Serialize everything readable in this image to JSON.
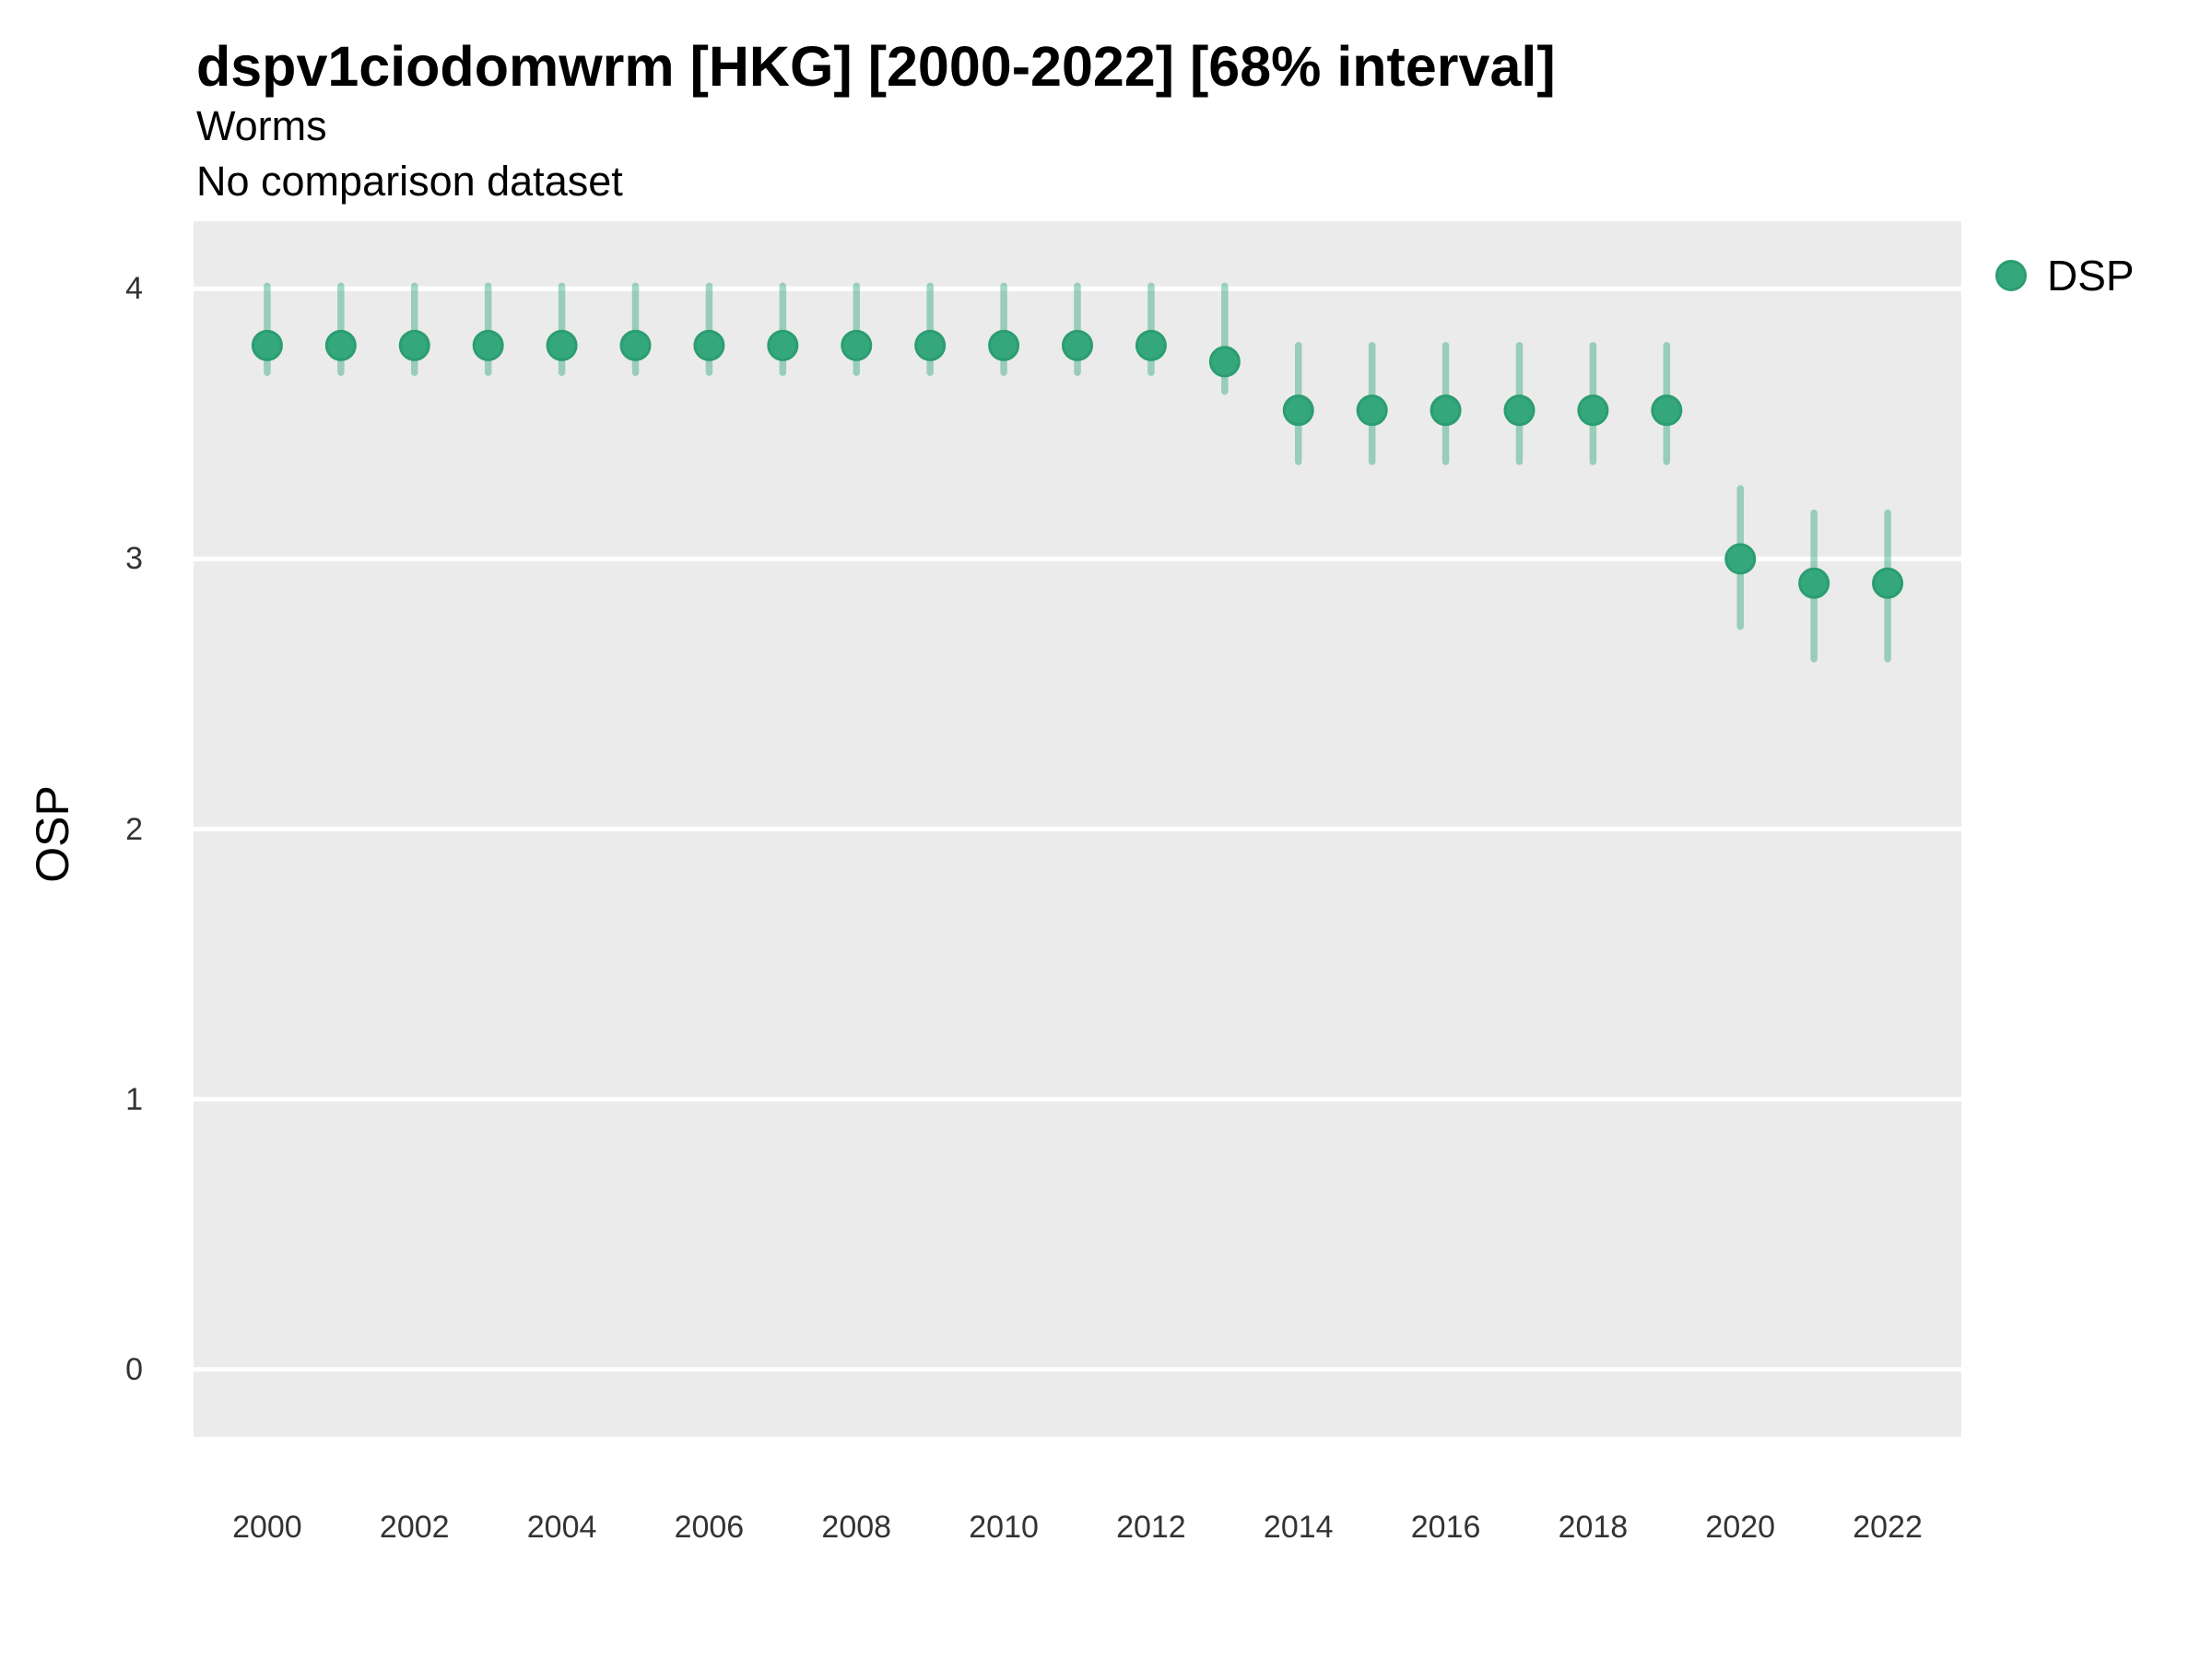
{
  "header": {
    "title": "dspv1ciodomwrm [HKG] [2000-2022] [68% interval]",
    "subtitle": "Worms",
    "comparison_note": "No comparison dataset"
  },
  "legend": {
    "position": "right",
    "items": [
      {
        "label": "DSP",
        "marker": "circle-icon",
        "color": "#34a87c"
      }
    ]
  },
  "colors": {
    "panel_background": "#EBEBEB",
    "gridline": "#FFFFFF",
    "point_fill": "#34a87c",
    "point_stroke": "#2b9d71",
    "interval_bar": "rgba(52,168,124,0.45)",
    "tick_text": "#333333"
  },
  "chart_data": {
    "type": "scatter",
    "title": "dspv1ciodomwrm [HKG] [2000-2022] [68% interval]",
    "subtitle": "Worms",
    "note": "No comparison dataset",
    "interval": "68%",
    "xlabel": "",
    "ylabel": "OSP",
    "grid": "horizontal-major",
    "legend_position": "right",
    "xlim": [
      1999,
      2023
    ],
    "ylim": [
      -0.25,
      4.25
    ],
    "x_ticks": [
      2000,
      2002,
      2004,
      2006,
      2008,
      2010,
      2012,
      2014,
      2016,
      2018,
      2020,
      2022
    ],
    "y_ticks": [
      0,
      1,
      2,
      3,
      4
    ],
    "series": [
      {
        "name": "DSP",
        "points": [
          {
            "x": 2000,
            "y": 3.79,
            "lo": 3.69,
            "hi": 4.01
          },
          {
            "x": 2001,
            "y": 3.79,
            "lo": 3.69,
            "hi": 4.01
          },
          {
            "x": 2002,
            "y": 3.79,
            "lo": 3.69,
            "hi": 4.01
          },
          {
            "x": 2003,
            "y": 3.79,
            "lo": 3.69,
            "hi": 4.01
          },
          {
            "x": 2004,
            "y": 3.79,
            "lo": 3.69,
            "hi": 4.01
          },
          {
            "x": 2005,
            "y": 3.79,
            "lo": 3.69,
            "hi": 4.01
          },
          {
            "x": 2006,
            "y": 3.79,
            "lo": 3.69,
            "hi": 4.01
          },
          {
            "x": 2007,
            "y": 3.79,
            "lo": 3.69,
            "hi": 4.01
          },
          {
            "x": 2008,
            "y": 3.79,
            "lo": 3.69,
            "hi": 4.01
          },
          {
            "x": 2009,
            "y": 3.79,
            "lo": 3.69,
            "hi": 4.01
          },
          {
            "x": 2010,
            "y": 3.79,
            "lo": 3.69,
            "hi": 4.01
          },
          {
            "x": 2011,
            "y": 3.79,
            "lo": 3.69,
            "hi": 4.01
          },
          {
            "x": 2012,
            "y": 3.79,
            "lo": 3.69,
            "hi": 4.01
          },
          {
            "x": 2013,
            "y": 3.73,
            "lo": 3.62,
            "hi": 4.01
          },
          {
            "x": 2014,
            "y": 3.55,
            "lo": 3.36,
            "hi": 3.79
          },
          {
            "x": 2015,
            "y": 3.55,
            "lo": 3.36,
            "hi": 3.79
          },
          {
            "x": 2016,
            "y": 3.55,
            "lo": 3.36,
            "hi": 3.79
          },
          {
            "x": 2017,
            "y": 3.55,
            "lo": 3.36,
            "hi": 3.79
          },
          {
            "x": 2018,
            "y": 3.55,
            "lo": 3.36,
            "hi": 3.79
          },
          {
            "x": 2019,
            "y": 3.55,
            "lo": 3.36,
            "hi": 3.79
          },
          {
            "x": 2020,
            "y": 3.0,
            "lo": 2.75,
            "hi": 3.26
          },
          {
            "x": 2021,
            "y": 2.91,
            "lo": 2.63,
            "hi": 3.17
          },
          {
            "x": 2022,
            "y": 2.91,
            "lo": 2.63,
            "hi": 3.17
          }
        ]
      }
    ]
  }
}
